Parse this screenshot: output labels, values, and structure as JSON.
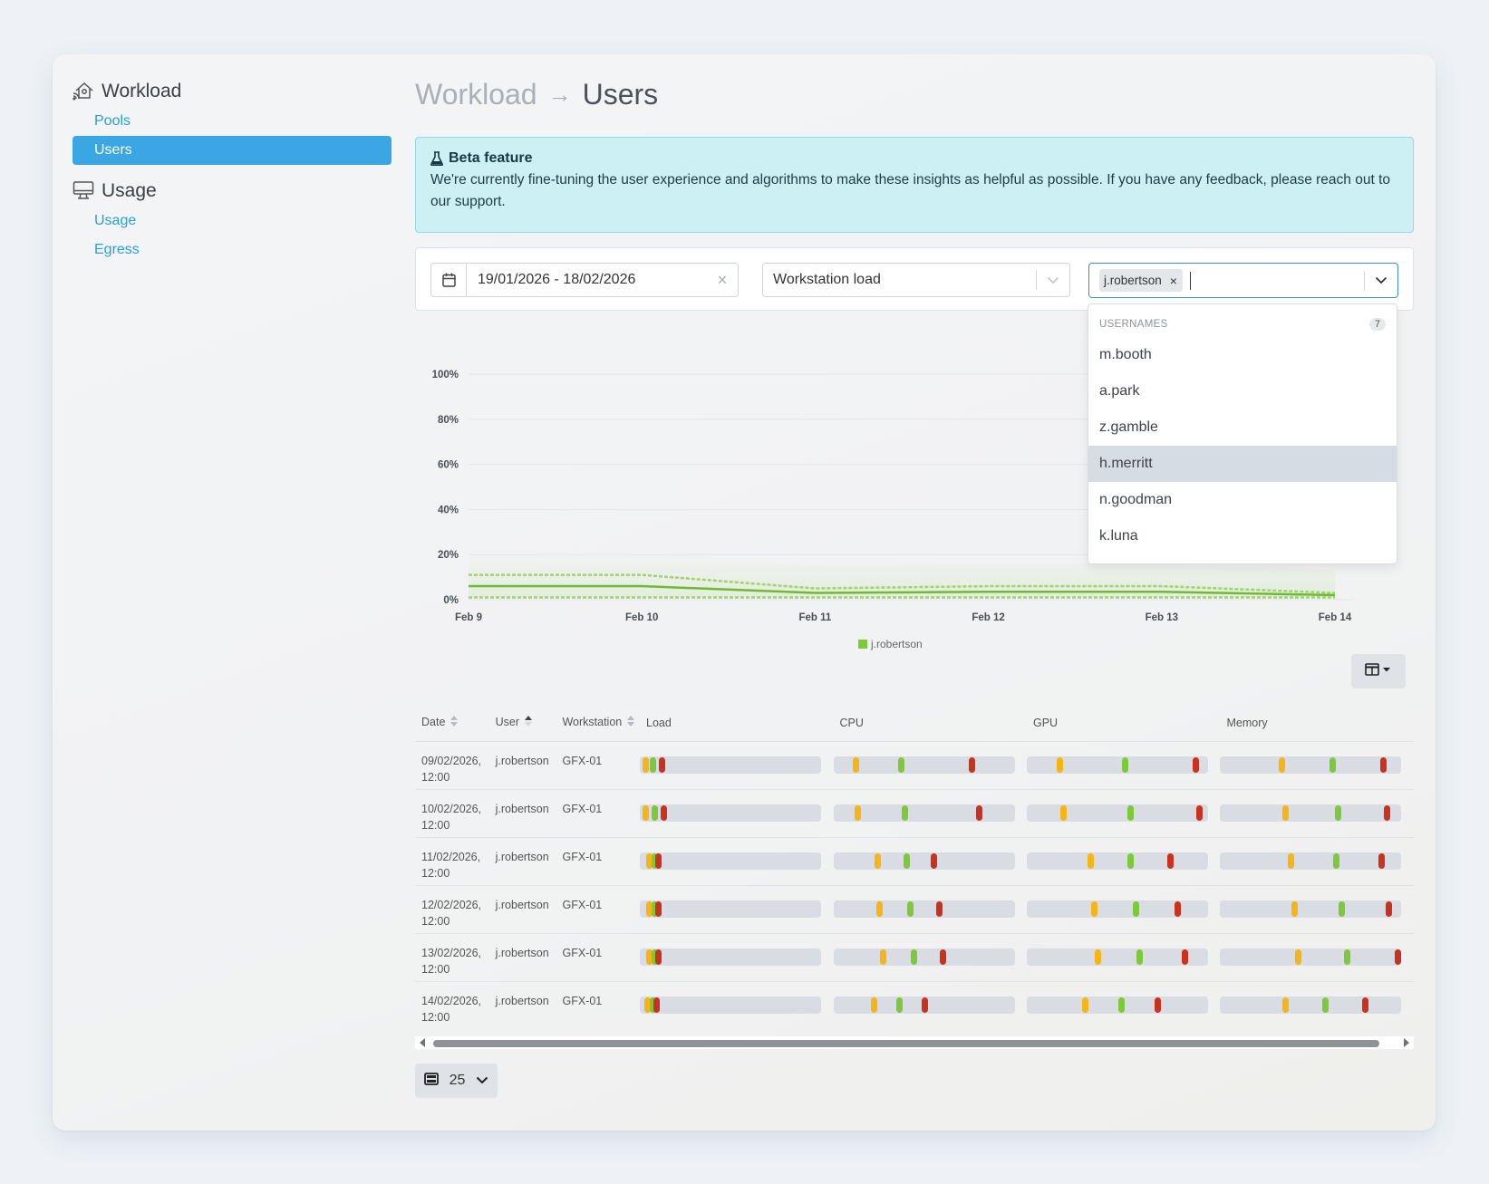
{
  "sidebar": {
    "sections": [
      {
        "title": "Workload",
        "icon": "workload-icon",
        "items": [
          {
            "label": "Pools",
            "active": false
          },
          {
            "label": "Users",
            "active": true
          }
        ]
      },
      {
        "title": "Usage",
        "icon": "monitor-icon",
        "items": [
          {
            "label": "Usage",
            "active": false
          },
          {
            "label": "Egress",
            "active": false
          }
        ]
      }
    ]
  },
  "breadcrumb": {
    "parent": "Workload",
    "arrow": "→",
    "current": "Users"
  },
  "beta": {
    "title": "Beta feature",
    "body": "We're currently fine-tuning the user experience and algorithms to make these insights as helpful as possible. If you have any feedback, please reach out to our support."
  },
  "filters": {
    "date_range": "19/01/2026 - 18/02/2026",
    "metric": "Workstation load",
    "selected_user": "j.robertson",
    "clear_symbol": "×"
  },
  "dropdown": {
    "header": "USERNAMES",
    "count": "7",
    "options": [
      "m.booth",
      "a.park",
      "z.gamble",
      "h.merritt",
      "n.goodman",
      "k.luna"
    ],
    "highlighted": "h.merritt"
  },
  "chart_data": {
    "type": "line",
    "x": [
      "Feb 9",
      "Feb 10",
      "Feb 11",
      "Feb 12",
      "Feb 13",
      "Feb 14"
    ],
    "y_ticks": [
      "0%",
      "20%",
      "40%",
      "60%",
      "80%",
      "100%"
    ],
    "ylim": [
      0,
      100
    ],
    "grid": true,
    "legend": {
      "position": "bottom",
      "entries": [
        {
          "name": "j.robertson",
          "color": "#7ec93a"
        }
      ]
    },
    "series": [
      {
        "name": "j.robertson",
        "role": "upper",
        "values": [
          11,
          11,
          5,
          6,
          6,
          3
        ]
      },
      {
        "name": "j.robertson",
        "role": "average",
        "values": [
          6,
          6,
          3,
          3.5,
          3.5,
          2
        ]
      },
      {
        "name": "j.robertson",
        "role": "lower",
        "values": [
          1,
          1,
          1,
          1,
          1,
          1
        ]
      }
    ]
  },
  "table": {
    "columns": [
      {
        "label": "Date",
        "sort": "none"
      },
      {
        "label": "User",
        "sort": "asc"
      },
      {
        "label": "Workstation",
        "sort": "none"
      },
      {
        "label": "Load",
        "sort": null
      },
      {
        "label": "CPU",
        "sort": null
      },
      {
        "label": "GPU",
        "sort": null
      },
      {
        "label": "Memory",
        "sort": null
      }
    ],
    "rows": [
      {
        "date": "09/02/2026,",
        "time": "12:00",
        "user": "j.robertson",
        "workstation": "GFX-01",
        "load": [
          3,
          7,
          12
        ],
        "cpu": [
          12,
          37,
          76
        ],
        "gpu": [
          18,
          54,
          93
        ],
        "memory": [
          34,
          62,
          90
        ]
      },
      {
        "date": "10/02/2026,",
        "time": "12:00",
        "user": "j.robertson",
        "workstation": "GFX-01",
        "load": [
          3,
          8,
          13
        ],
        "cpu": [
          13,
          39,
          80
        ],
        "gpu": [
          20,
          57,
          95
        ],
        "memory": [
          36,
          65,
          92
        ]
      },
      {
        "date": "11/02/2026,",
        "time": "12:00",
        "user": "j.robertson",
        "workstation": "GFX-01",
        "load": [
          5,
          8,
          10
        ],
        "cpu": [
          24,
          40,
          55
        ],
        "gpu": [
          35,
          57,
          79
        ],
        "memory": [
          39,
          64,
          89
        ]
      },
      {
        "date": "12/02/2026,",
        "time": "12:00",
        "user": "j.robertson",
        "workstation": "GFX-01",
        "load": [
          5,
          8,
          10
        ],
        "cpu": [
          25,
          42,
          58
        ],
        "gpu": [
          37,
          60,
          83
        ],
        "memory": [
          41,
          67,
          93
        ]
      },
      {
        "date": "13/02/2026,",
        "time": "12:00",
        "user": "j.robertson",
        "workstation": "GFX-01",
        "load": [
          5,
          8,
          10
        ],
        "cpu": [
          27,
          44,
          60
        ],
        "gpu": [
          39,
          62,
          87
        ],
        "memory": [
          43,
          70,
          98
        ]
      },
      {
        "date": "14/02/2026,",
        "time": "12:00",
        "user": "j.robertson",
        "workstation": "GFX-01",
        "load": [
          4,
          7,
          9
        ],
        "cpu": [
          22,
          36,
          50
        ],
        "gpu": [
          32,
          52,
          72
        ],
        "memory": [
          36,
          58,
          80
        ]
      }
    ]
  },
  "pager": {
    "page_size": "25"
  }
}
